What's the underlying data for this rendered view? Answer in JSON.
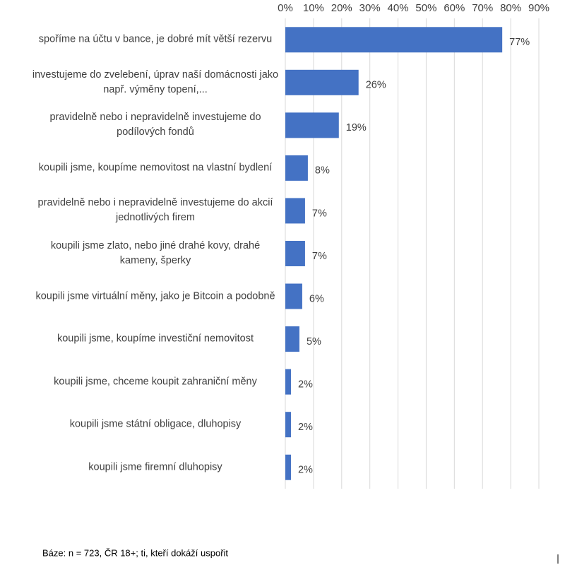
{
  "chart_data": {
    "type": "bar",
    "orientation": "horizontal",
    "categories": [
      "spoříme na účtu v bance, je dobré mít větší rezervu",
      "investujeme do zvelebení, úprav naší domácnosti jako např. výměny topení,...",
      "pravidelně nebo i nepravidelně investujeme do podílových fondů",
      "koupili jsme, koupíme nemovitost na vlastní bydlení",
      "pravidelně nebo i nepravidelně investujeme do akcií jednotlivých firem",
      "koupili jsme zlato, nebo jiné drahé kovy, drahé kameny, šperky",
      "koupili jsme virtuální měny, jako je Bitcoin a podobně",
      "koupili jsme, koupíme investiční nemovitost",
      "koupili jsme, chceme koupit zahraniční měny",
      "koupili jsme státní obligace, dluhopisy",
      "koupili jsme firemní dluhopisy"
    ],
    "values": [
      77,
      26,
      19,
      8,
      7,
      7,
      6,
      5,
      2,
      2,
      2
    ],
    "value_labels": [
      "77%",
      "26%",
      "19%",
      "8%",
      "7%",
      "7%",
      "6%",
      "5%",
      "2%",
      "2%",
      "2%"
    ],
    "color": "#4472c4",
    "xlim": [
      0,
      90
    ],
    "xticks": [
      {
        "value": 0,
        "label": "0%"
      },
      {
        "value": 10,
        "label": "10%"
      },
      {
        "value": 20,
        "label": "20%"
      },
      {
        "value": 30,
        "label": "30%"
      },
      {
        "value": 40,
        "label": "40%"
      },
      {
        "value": 50,
        "label": "50%"
      },
      {
        "value": 60,
        "label": "60%"
      },
      {
        "value": 70,
        "label": "70%"
      },
      {
        "value": 80,
        "label": "80%"
      },
      {
        "value": 90,
        "label": "90%"
      }
    ],
    "grid": true,
    "footnote": "Báze: n = 723, ČR 18+; ti, kteří dokáží uspořit"
  }
}
